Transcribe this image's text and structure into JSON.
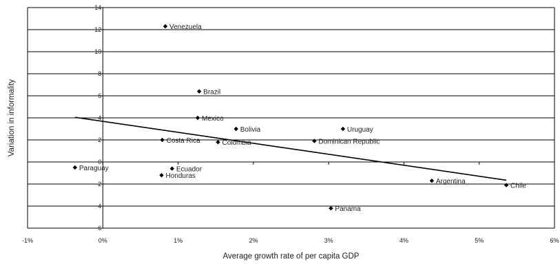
{
  "chart_data": {
    "type": "scatter",
    "xlabel": "Average growth rate of per capita GDP",
    "ylabel": "Variation in  informality",
    "xlim": [
      -0.01,
      0.06
    ],
    "ylim": [
      -6,
      14
    ],
    "x_ticks": [
      {
        "value": -0.01,
        "label": "-1%"
      },
      {
        "value": 0.0,
        "label": "0%"
      },
      {
        "value": 0.01,
        "label": "1%"
      },
      {
        "value": 0.02,
        "label": "2%"
      },
      {
        "value": 0.03,
        "label": "3%"
      },
      {
        "value": 0.04,
        "label": "4%"
      },
      {
        "value": 0.05,
        "label": "5%"
      },
      {
        "value": 0.06,
        "label": "6%"
      }
    ],
    "y_ticks": [
      {
        "value": 14,
        "label": "14"
      },
      {
        "value": 12,
        "label": "12"
      },
      {
        "value": 10,
        "label": "10"
      },
      {
        "value": 8,
        "label": "8"
      },
      {
        "value": 6,
        "label": "6"
      },
      {
        "value": 4,
        "label": "4"
      },
      {
        "value": 2,
        "label": "2"
      },
      {
        "value": 0,
        "label": "0"
      },
      {
        "value": -2,
        "label": "-2"
      },
      {
        "value": -4,
        "label": "-4"
      },
      {
        "value": -6,
        "label": "-6"
      }
    ],
    "grid": "horizontal",
    "points": [
      {
        "label": "Venezuela",
        "x": 0.0083,
        "y": 12.3
      },
      {
        "label": "Brazil",
        "x": 0.0128,
        "y": 6.4
      },
      {
        "label": "Mexico",
        "x": 0.0126,
        "y": 4.0
      },
      {
        "label": "Bolivia",
        "x": 0.0177,
        "y": 3.0
      },
      {
        "label": "Uruguay",
        "x": 0.0319,
        "y": 3.0
      },
      {
        "label": "Costa Rica",
        "x": 0.0079,
        "y": 2.0
      },
      {
        "label": "Colombia",
        "x": 0.0153,
        "y": 1.8
      },
      {
        "label": "Dominican Republic",
        "x": 0.0281,
        "y": 1.9
      },
      {
        "label": "Paraguay",
        "x": -0.0037,
        "y": -0.5
      },
      {
        "label": "Ecuador",
        "x": 0.0092,
        "y": -0.6
      },
      {
        "label": "Honduras",
        "x": 0.0078,
        "y": -1.2
      },
      {
        "label": "Argentina",
        "x": 0.0437,
        "y": -1.7
      },
      {
        "label": "Chile",
        "x": 0.0536,
        "y": -2.1
      },
      {
        "label": "Panama",
        "x": 0.0303,
        "y": -4.2
      }
    ],
    "trendline": {
      "type": "linear",
      "x": [
        -0.0037,
        0.0536
      ],
      "y": [
        4.05,
        -1.65
      ]
    },
    "colors": {
      "points": "#000000",
      "trendline": "#000000",
      "grid": "#000000"
    }
  }
}
